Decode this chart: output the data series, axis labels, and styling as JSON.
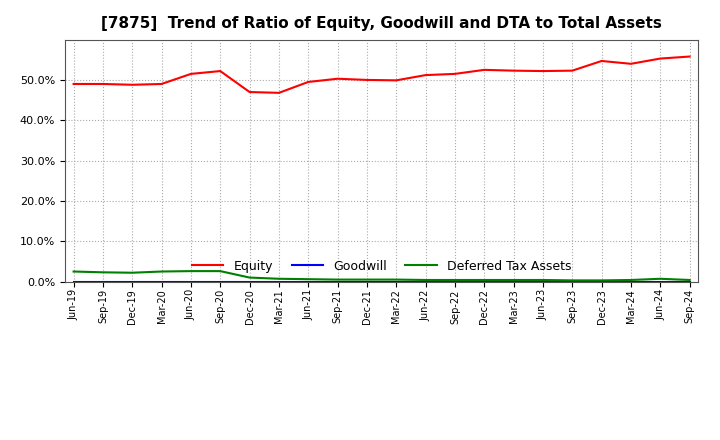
{
  "title": "[7875]  Trend of Ratio of Equity, Goodwill and DTA to Total Assets",
  "x_labels": [
    "Jun-19",
    "Sep-19",
    "Dec-19",
    "Mar-20",
    "Jun-20",
    "Sep-20",
    "Dec-20",
    "Mar-21",
    "Jun-21",
    "Sep-21",
    "Dec-21",
    "Mar-22",
    "Jun-22",
    "Sep-22",
    "Dec-22",
    "Mar-23",
    "Jun-23",
    "Sep-23",
    "Dec-23",
    "Mar-24",
    "Jun-24",
    "Sep-24"
  ],
  "equity": [
    0.49,
    0.49,
    0.488,
    0.49,
    0.515,
    0.522,
    0.47,
    0.468,
    0.495,
    0.503,
    0.5,
    0.499,
    0.512,
    0.515,
    0.525,
    0.523,
    0.522,
    0.523,
    0.547,
    0.54,
    0.553,
    0.558
  ],
  "goodwill": [
    0.0,
    0.0,
    0.0,
    0.0,
    0.0,
    0.0,
    0.0,
    0.0,
    0.0,
    0.0,
    0.0,
    0.0,
    0.0,
    0.0,
    0.0,
    0.0,
    0.0,
    0.0,
    0.0,
    0.0,
    0.0,
    0.0
  ],
  "dta": [
    0.025,
    0.023,
    0.022,
    0.025,
    0.026,
    0.026,
    0.01,
    0.007,
    0.006,
    0.005,
    0.005,
    0.005,
    0.004,
    0.004,
    0.004,
    0.004,
    0.004,
    0.003,
    0.003,
    0.004,
    0.007,
    0.004
  ],
  "equity_color": "#ff0000",
  "goodwill_color": "#0000ff",
  "dta_color": "#008000",
  "ylim": [
    0.0,
    0.6
  ],
  "yticks": [
    0.0,
    0.1,
    0.2,
    0.3,
    0.4,
    0.5
  ],
  "background_color": "#ffffff",
  "plot_bg_color": "#ffffff",
  "grid_color": "#aaaaaa",
  "title_fontsize": 11,
  "legend_labels": [
    "Equity",
    "Goodwill",
    "Deferred Tax Assets"
  ]
}
